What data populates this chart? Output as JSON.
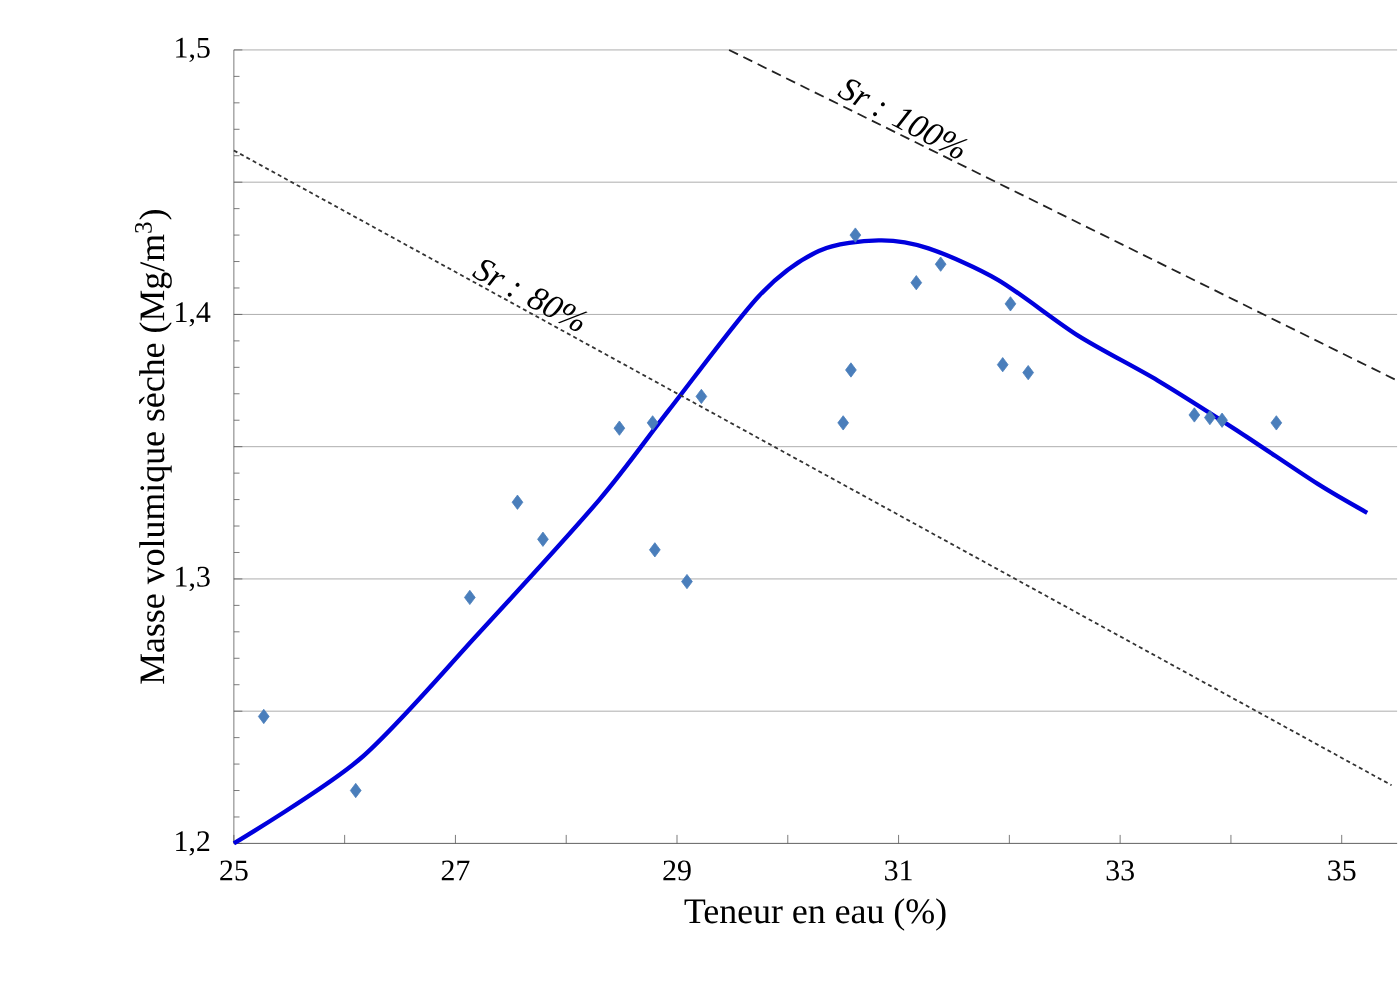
{
  "chart_data": {
    "type": "scatter",
    "xlabel": "Teneur en eau (%)",
    "ylabel": "Masse volumique sèche (Mg/m$^{3}$)",
    "xlim": [
      25,
      35.5
    ],
    "xticks": [
      25,
      {
        "value": 26,
        "label": null
      },
      27,
      {
        "value": 28,
        "label": null
      },
      29,
      {
        "value": 30,
        "label": null
      },
      31,
      {
        "value": 32,
        "label": null
      },
      33,
      {
        "value": 34,
        "label": null
      },
      35
    ],
    "ylim": [
      1.2,
      1.5
    ],
    "yticks": [
      {
        "value": 1.2,
        "label": "1,2"
      },
      {
        "value": 1.25,
        "label": null
      },
      {
        "value": 1.3,
        "label": "1,3"
      },
      {
        "value": 1.35,
        "label": null
      },
      {
        "value": 1.4,
        "label": "1,4"
      },
      {
        "value": 1.45,
        "label": null
      },
      {
        "value": 1.5,
        "label": "1,5"
      }
    ],
    "grid": "y",
    "series": [
      {
        "color": "#4a7ebb",
        "marker": "diamond",
        "x": [
          25.27,
          26.1,
          27.13,
          27.56,
          27.79,
          28.48,
          28.78,
          28.8,
          29.09,
          29.22,
          30.5,
          30.57,
          30.61,
          31.16,
          31.38,
          32.01,
          31.94,
          32.17,
          33.67,
          33.81,
          33.92,
          34.41
        ],
        "values": [
          1.248,
          1.22,
          1.293,
          1.329,
          1.315,
          1.357,
          1.359,
          1.311,
          1.299,
          1.369,
          1.359,
          1.379,
          1.43,
          1.412,
          1.419,
          1.404,
          1.381,
          1.378,
          1.362,
          1.361,
          1.36,
          1.359
        ]
      },
      {
        "type": "line",
        "color": "#0000dd",
        "line_style": "solid",
        "marker": "none",
        "x": [
          25,
          26.14,
          27.2,
          28.3,
          28.93,
          29.74,
          30.28,
          30.82,
          31.27,
          31.9,
          32.62,
          33.34,
          34.06,
          34.78,
          35.23
        ],
        "values": [
          1.2,
          1.232,
          1.279,
          1.33,
          1.364,
          1.407,
          1.424,
          1.428,
          1.425,
          1.413,
          1.392,
          1.375,
          1.356,
          1.336,
          1.325
        ]
      },
      {
        "type": "line",
        "name": "Sr : 80%",
        "color": "#333333",
        "line_style": "dotted",
        "marker": "none",
        "x": [
          25,
          35.45
        ],
        "values": [
          1.462,
          1.222
        ]
      },
      {
        "type": "line",
        "name": "Sr : 100%",
        "color": "#222222",
        "line_style": "dashed",
        "marker": "none",
        "x": [
          29.47,
          35.5
        ],
        "values": [
          1.5,
          1.375
        ]
      }
    ]
  }
}
